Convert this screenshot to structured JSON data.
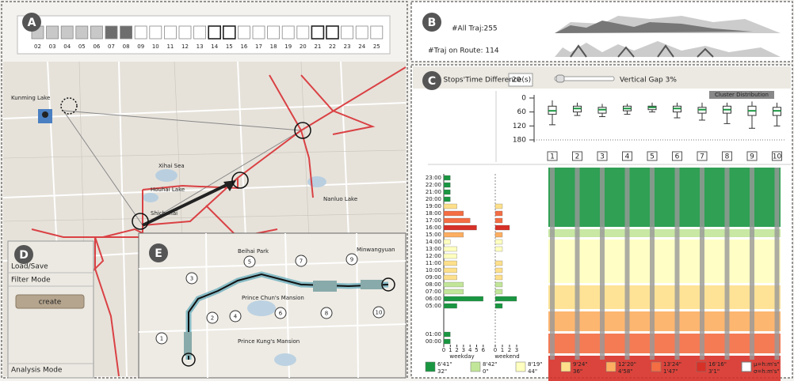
{
  "panel_labels": [
    "A",
    "B",
    "C",
    "D",
    "E"
  ],
  "calendar": {
    "days": [
      "02",
      "03",
      "04",
      "05",
      "06",
      "07",
      "08",
      "09",
      "10",
      "11",
      "12",
      "13",
      "14",
      "15",
      "16",
      "17",
      "18",
      "19",
      "20",
      "21",
      "22",
      "23",
      "24",
      "25"
    ],
    "fills": [
      "#c8c8c8",
      "#c8c8c8",
      "#c8c8c8",
      "#c8c8c8",
      "#c8c8c8",
      "#6e6e6e",
      "#6e6e6e",
      "#ffffff",
      "#ffffff",
      "#ffffff",
      "#ffffff",
      "#ffffff",
      "#ffffff",
      "#ffffff",
      "#ffffff",
      "#ffffff",
      "#ffffff",
      "#ffffff",
      "#ffffff",
      "#ffffff",
      "#ffffff",
      "#ffffff",
      "#ffffff",
      "#ffffff"
    ],
    "bold": [
      false,
      false,
      false,
      false,
      false,
      false,
      false,
      false,
      false,
      false,
      false,
      false,
      true,
      true,
      false,
      false,
      false,
      false,
      false,
      true,
      true,
      false,
      false,
      false
    ]
  },
  "overview": {
    "all_label": "#All Traj:255",
    "route_label": "#Traj on Route: 114"
  },
  "controls": {
    "gap_label": "Max Stops'Time Difference(s)",
    "gap_value": "20",
    "vertical_gap": "Vertical Gap 3%",
    "cluster_button": "Cluster Distribution"
  },
  "boxplot": {
    "ylim": [
      0,
      180
    ],
    "yticks": [
      0,
      60,
      120,
      180
    ],
    "stops": [
      "1",
      "2",
      "3",
      "4",
      "5",
      "6",
      "7",
      "8",
      "9",
      "10"
    ],
    "boxes": [
      {
        "min": 10,
        "q1": 35,
        "median": 55,
        "q3": 70,
        "max": 115
      },
      {
        "min": 20,
        "q1": 35,
        "median": 45,
        "q3": 60,
        "max": 75
      },
      {
        "min": 25,
        "q1": 40,
        "median": 50,
        "q3": 65,
        "max": 80
      },
      {
        "min": 25,
        "q1": 35,
        "median": 45,
        "q3": 55,
        "max": 70
      },
      {
        "min": 20,
        "q1": 35,
        "median": 40,
        "q3": 50,
        "max": 60
      },
      {
        "min": 20,
        "q1": 35,
        "median": 45,
        "q3": 60,
        "max": 85
      },
      {
        "min": 20,
        "q1": 40,
        "median": 50,
        "q3": 65,
        "max": 95
      },
      {
        "min": 20,
        "q1": 35,
        "median": 50,
        "q3": 65,
        "max": 110
      },
      {
        "min": 15,
        "q1": 35,
        "median": 55,
        "q3": 75,
        "max": 130
      },
      {
        "min": 20,
        "q1": 40,
        "median": 55,
        "q3": 75,
        "max": 120
      }
    ]
  },
  "histogram": {
    "hours": [
      "23:00",
      "22:00",
      "21:00",
      "20:00",
      "19:00",
      "18:00",
      "17:00",
      "16:00",
      "15:00",
      "14:00",
      "13:00",
      "12:00",
      "11:00",
      "10:00",
      "09:00",
      "08:00",
      "07:00",
      "06:00",
      "05:00",
      "01:00",
      "00:00"
    ],
    "weekday": [
      1,
      1,
      1,
      1,
      2,
      3,
      4,
      5,
      3,
      1,
      2,
      2,
      2,
      2,
      2,
      3,
      3,
      6,
      2,
      1,
      1
    ],
    "weekend": [
      0,
      0,
      0,
      0,
      1,
      1,
      1,
      2,
      1,
      1,
      1,
      0,
      1,
      1,
      1,
      1,
      1,
      3,
      1,
      0,
      0
    ],
    "cluster": [
      0,
      0,
      0,
      0,
      3,
      5,
      5,
      6,
      4,
      2,
      2,
      2,
      3,
      3,
      3,
      1,
      1,
      0,
      0,
      0,
      0
    ],
    "weekday_ticks": [
      0,
      1,
      2,
      3,
      4,
      5,
      6
    ],
    "weekend_ticks": [
      0,
      1,
      2,
      3
    ],
    "weekday_label": "weekday",
    "weekend_label": "weekend"
  },
  "legend": [
    {
      "mean": "6'41\"",
      "sd": "32\"",
      "color": "#1a9641"
    },
    {
      "mean": "8'42\"",
      "sd": "0\"",
      "color": "#c2e699"
    },
    {
      "mean": "8'19\"",
      "sd": "44\"",
      "color": "#ffffbf"
    },
    {
      "mean": "9'24\"",
      "sd": "36\"",
      "color": "#fee08b"
    },
    {
      "mean": "12'20\"",
      "sd": "4'58\"",
      "color": "#fdae61"
    },
    {
      "mean": "13'24\"",
      "sd": "1'47\"",
      "color": "#f46d43"
    },
    {
      "mean": "16'16\"",
      "sd": "3'1\"",
      "color": "#d73027"
    }
  ],
  "legend_key": {
    "mean": "μ=h:m's\"",
    "sd": "σ=h:m's\""
  },
  "menu": {
    "load": "Load/Save",
    "filter": "Filter Mode",
    "button": "create",
    "analysis": "Analysis Mode"
  },
  "map_labels": [
    "Kunming Lake",
    "Xihai Sea",
    "Houhai Lake",
    "Shichahai",
    "Nanluo Lake"
  ],
  "inset": {
    "stops": [
      "1",
      "2",
      "3",
      "4",
      "5",
      "6",
      "7",
      "8",
      "9",
      "10"
    ],
    "labels": [
      "Prince Chun's Mansion",
      "Prince Kung's Mansion",
      "Beihai Park",
      "Minwangyuan"
    ]
  }
}
